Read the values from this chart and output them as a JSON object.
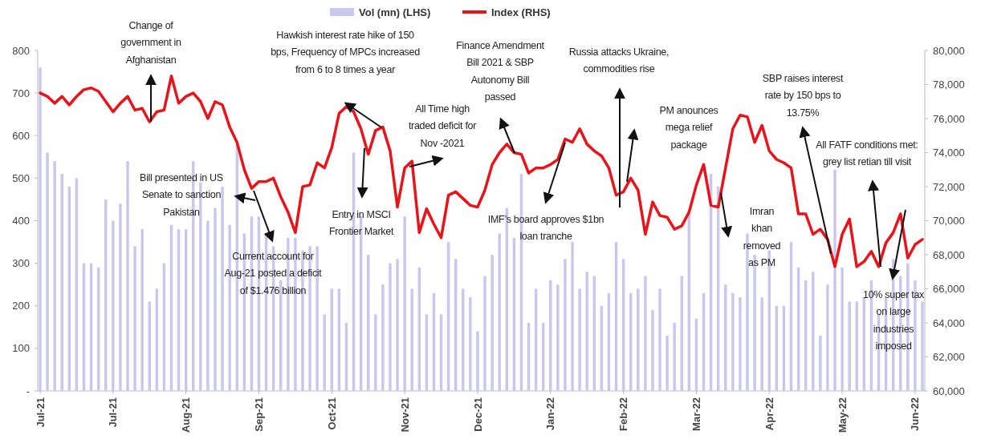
{
  "chart_data": {
    "type": "bar",
    "legend": "top",
    "categories": [
      "Jul-21",
      null,
      null,
      null,
      null,
      null,
      null,
      null,
      null,
      null,
      "Jul-21",
      null,
      null,
      null,
      null,
      null,
      null,
      null,
      null,
      null,
      "Aug-21",
      null,
      null,
      null,
      null,
      null,
      null,
      null,
      null,
      null,
      "Sep-21",
      null,
      null,
      null,
      null,
      null,
      null,
      null,
      null,
      null,
      "Oct-21",
      null,
      null,
      null,
      null,
      null,
      null,
      null,
      null,
      null,
      "Nov-21",
      null,
      null,
      null,
      null,
      null,
      null,
      null,
      null,
      null,
      "Dec-21",
      null,
      null,
      null,
      null,
      null,
      null,
      null,
      null,
      null,
      "Jan-22",
      null,
      null,
      null,
      null,
      null,
      null,
      null,
      null,
      null,
      "Feb-22",
      null,
      null,
      null,
      null,
      null,
      null,
      null,
      null,
      null,
      "Mar-22",
      null,
      null,
      null,
      null,
      null,
      null,
      null,
      null,
      null,
      "Apr-22",
      null,
      null,
      null,
      null,
      null,
      null,
      null,
      null,
      null,
      "May-22",
      null,
      null,
      null,
      null,
      null,
      null,
      null,
      null,
      null,
      "Jun-22",
      null
    ],
    "ylim": [
      0,
      800
    ],
    "yticks": [
      {
        "value": 0,
        "label": "-"
      },
      100,
      200,
      300,
      400,
      500,
      600,
      700,
      800
    ],
    "y2lim": [
      60000,
      80000
    ],
    "y2ticks": [
      {
        "value": 60000,
        "label": "60,000"
      },
      {
        "value": 62000,
        "label": "62,000"
      },
      {
        "value": 64000,
        "label": "64,000"
      },
      {
        "value": 66000,
        "label": "66,000"
      },
      {
        "value": 68000,
        "label": "68,000"
      },
      {
        "value": 70000,
        "label": "70,000"
      },
      {
        "value": 72000,
        "label": "72,000"
      },
      {
        "value": 74000,
        "label": "74,000"
      },
      {
        "value": 76000,
        "label": "76,000"
      },
      {
        "value": 78000,
        "label": "78,000"
      },
      {
        "value": 80000,
        "label": "80,000"
      }
    ],
    "series": [
      {
        "name": "Vol (mn) (LHS)",
        "color": "#c9c8ec",
        "values": [
          760,
          560,
          540,
          510,
          480,
          500,
          300,
          300,
          290,
          450,
          400,
          440,
          540,
          340,
          380,
          210,
          240,
          300,
          390,
          380,
          380,
          540,
          490,
          400,
          430,
          480,
          390,
          580,
          370,
          410,
          410,
          370,
          340,
          260,
          360,
          360,
          330,
          340,
          340,
          180,
          240,
          240,
          160,
          560,
          410,
          320,
          180,
          250,
          300,
          310,
          410,
          240,
          290,
          180,
          230,
          180,
          350,
          310,
          240,
          220,
          140,
          270,
          320,
          370,
          430,
          360,
          510,
          160,
          240,
          160,
          260,
          250,
          310,
          350,
          240,
          280,
          270,
          200,
          230,
          350,
          310,
          230,
          240,
          270,
          190,
          240,
          130,
          160,
          270,
          420,
          170,
          230,
          510,
          480,
          250,
          230,
          220,
          370,
          320,
          220,
          330,
          200,
          200,
          350,
          290,
          260,
          280,
          130,
          250,
          520,
          290,
          210,
          210,
          220,
          260,
          180,
          220,
          310,
          270,
          300,
          260,
          210
        ]
      },
      {
        "name": "Index (RHS)",
        "type": "line",
        "axis": "y2",
        "color": "#e8141b",
        "values": [
          77500,
          77300,
          76900,
          77300,
          76800,
          77300,
          77700,
          77800,
          77600,
          77000,
          76400,
          76900,
          77300,
          76500,
          76600,
          75800,
          76400,
          76500,
          78500,
          76900,
          77300,
          77500,
          77000,
          76000,
          77000,
          76800,
          75500,
          74600,
          73000,
          71900,
          72300,
          72300,
          72500,
          71400,
          70500,
          69300,
          72000,
          72100,
          73400,
          73100,
          74300,
          76300,
          76700,
          76400,
          75400,
          73900,
          75300,
          75500,
          74100,
          70800,
          73100,
          73500,
          69300,
          70700,
          69800,
          69000,
          71500,
          71700,
          71300,
          70900,
          70800,
          71800,
          73300,
          74000,
          74500,
          74000,
          73900,
          72800,
          73100,
          73100,
          73300,
          73600,
          74800,
          74600,
          75400,
          74500,
          74100,
          73800,
          73100,
          71500,
          71700,
          72500,
          71800,
          69200,
          71100,
          70300,
          70200,
          69500,
          69700,
          70500,
          72100,
          73300,
          70900,
          70800,
          73100,
          75400,
          76200,
          76100,
          74600,
          75600,
          74100,
          73600,
          73400,
          73100,
          70400,
          70400,
          69200,
          69500,
          68900,
          67300,
          69200,
          70100,
          67300,
          67600,
          68200,
          67300,
          68700,
          69300,
          70400,
          67800,
          68600,
          68900
        ]
      }
    ],
    "annotations": [
      "Change of government in Afghanistan",
      "Hawkish interest rate hike of 150 bps, Frequency of MPCs increased from 6 to 8 times a year",
      "Bill presented in US Senate to sanction Pakistan",
      "Current account for Aug-21 posted a deficit of $1.476 billion",
      "Entry in MSCI Frontier Market",
      "All Time high traded deficit for Nov -2021",
      "Finance Amendment Bill 2021 & SBP Autonomy Bill passed",
      "IMF’s board approves $1bn loan tranche",
      "Russia attacks Ukraine, commodities rise",
      "PM anounces mega relief package",
      "Imran khan removed as PM",
      "SBP raises interest rate by 150 bps to 13.75%",
      "All FATF conditions met: grey list retian till visit",
      "10% super tax on large industries imposed"
    ]
  }
}
